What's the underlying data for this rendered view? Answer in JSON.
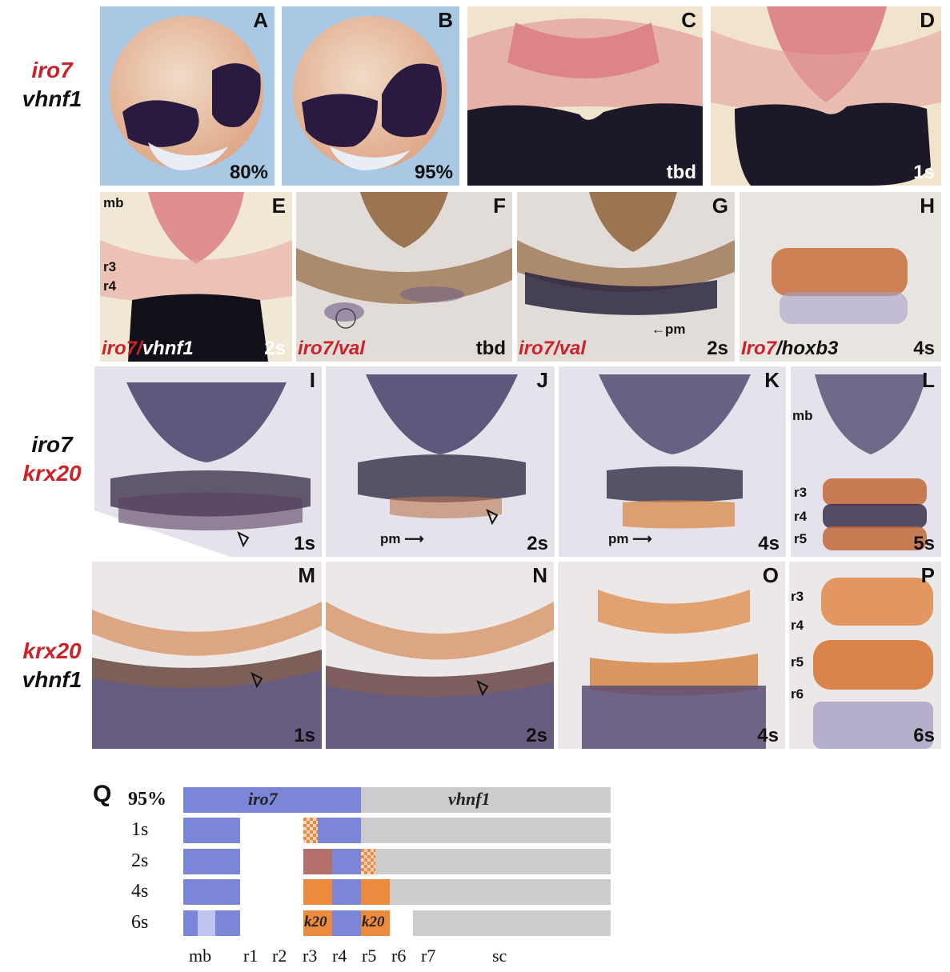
{
  "row1": {
    "side_label": [
      "iro7",
      "vhnf1"
    ],
    "panels": [
      {
        "letter": "A",
        "stage": "80%"
      },
      {
        "letter": "B",
        "stage": "95%"
      },
      {
        "letter": "C",
        "stage": "tbd"
      },
      {
        "letter": "D",
        "stage": "1s"
      }
    ]
  },
  "row2": {
    "panels": [
      {
        "letter": "E",
        "stage": "2s",
        "probe_a": "iro7/",
        "probe_b": "vhnf1",
        "annotations": [
          "mb",
          "r3",
          "r4"
        ]
      },
      {
        "letter": "F",
        "stage": "tbd",
        "probe_a": "iro7/",
        "probe_b": "val"
      },
      {
        "letter": "G",
        "stage": "2s",
        "probe_a": "iro7/",
        "probe_b": "val",
        "annotation": "pm"
      },
      {
        "letter": "H",
        "stage": "4s",
        "probe_a": "Iro7",
        "probe_b": "/hoxb3"
      }
    ]
  },
  "row3": {
    "side_label": [
      "iro7",
      "krx20"
    ],
    "panels": [
      {
        "letter": "I",
        "stage": "1s"
      },
      {
        "letter": "J",
        "stage": "2s",
        "annotation": "pm"
      },
      {
        "letter": "K",
        "stage": "4s",
        "annotation": "pm"
      },
      {
        "letter": "L",
        "stage": "5s",
        "annotations": [
          "mb",
          "r3",
          "r4",
          "r5"
        ]
      }
    ]
  },
  "row4": {
    "side_label": [
      "krx20",
      "vhnf1"
    ],
    "panels": [
      {
        "letter": "M",
        "stage": "1s"
      },
      {
        "letter": "N",
        "stage": "2s"
      },
      {
        "letter": "O",
        "stage": "4s"
      },
      {
        "letter": "P",
        "stage": "6s",
        "annotations": [
          "r3",
          "r4",
          "r5",
          "r6"
        ]
      }
    ]
  },
  "schematic": {
    "letter": "Q",
    "rows": [
      "95%",
      "1s",
      "2s",
      "4s",
      "6s"
    ],
    "iro7_label": "iro7",
    "vhnf1_label": "vhnf1",
    "k20_label": "k20",
    "ticks": [
      "mb",
      "r1",
      "r2",
      "r3",
      "r4",
      "r5",
      "r6",
      "r7",
      "sc"
    ],
    "colors": {
      "iro7": "#7b86d6",
      "vhnf1": "#cccccc",
      "krx20": "#ec8a3e"
    }
  }
}
